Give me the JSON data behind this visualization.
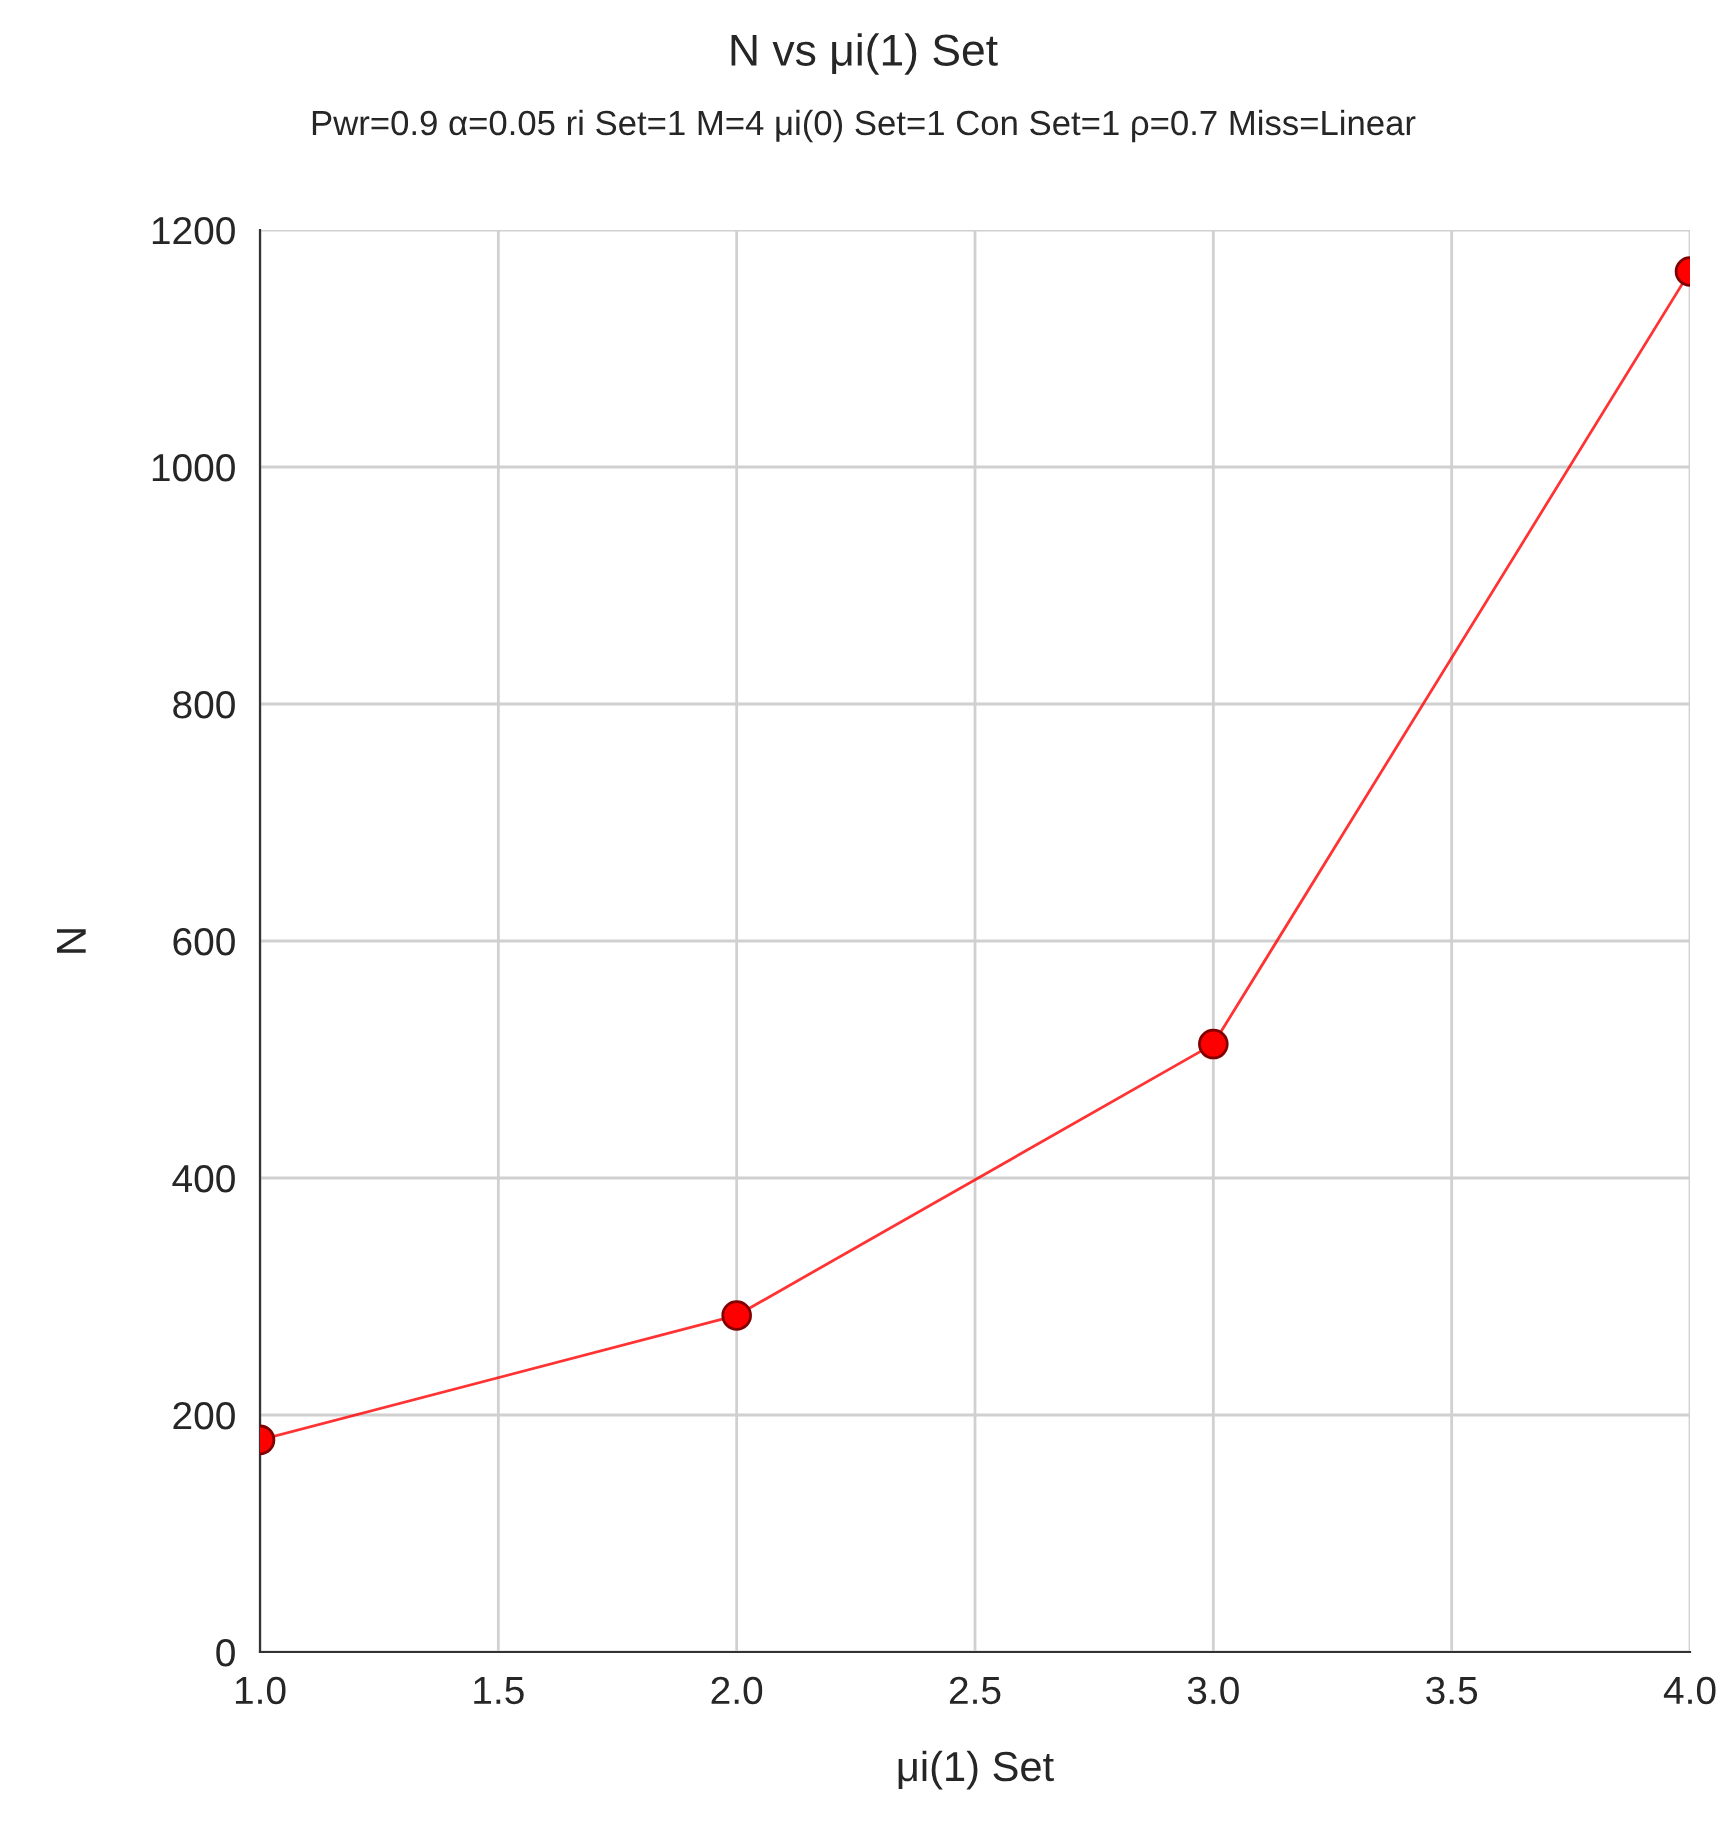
{
  "chart_data": {
    "type": "line",
    "title": "N vs μi(1) Set",
    "subtitle": "Pwr=0.9 α=0.05 ri Set=1 M=4 μi(0) Set=1 Con Set=1 ρ=0.7 Miss=Linear",
    "xlabel": "μi(1) Set",
    "ylabel": "N",
    "x": [
      1.0,
      2.0,
      3.0,
      4.0
    ],
    "series": [
      {
        "color": "#ff0000",
        "values": [
          179,
          284,
          513,
          1165
        ]
      }
    ],
    "xlim": [
      1.0,
      4.0
    ],
    "ylim": [
      0,
      1200
    ],
    "xticks": [
      {
        "value": 1.0,
        "label": "1.0"
      },
      {
        "value": 1.5,
        "label": "1.5"
      },
      {
        "value": 2.0,
        "label": "2.0"
      },
      {
        "value": 2.5,
        "label": "2.5"
      },
      {
        "value": 3.0,
        "label": "3.0"
      },
      {
        "value": 3.5,
        "label": "3.5"
      },
      {
        "value": 4.0,
        "label": "4.0"
      }
    ],
    "yticks": [
      0,
      200,
      400,
      600,
      800,
      1000,
      1200
    ],
    "grid": true,
    "marker": "circle",
    "line_style": "solid"
  }
}
